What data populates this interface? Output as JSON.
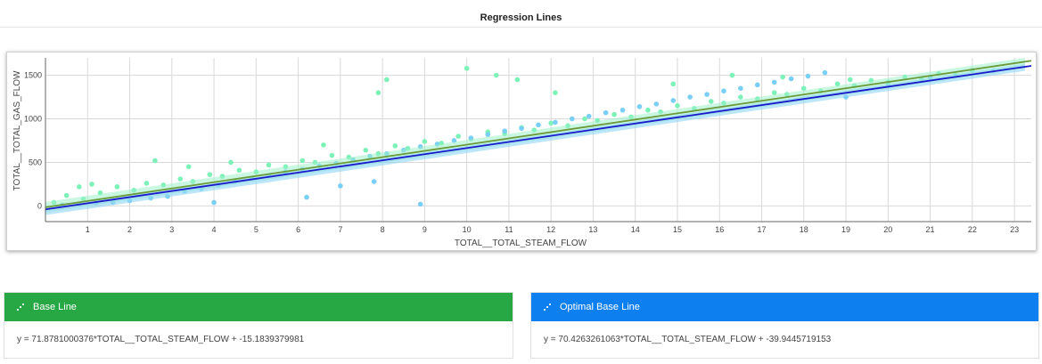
{
  "page": {
    "title": "Regression Lines"
  },
  "chart_data": {
    "type": "scatter",
    "title": "",
    "xlabel": "TOTAL__TOTAL_STEAM_FLOW",
    "ylabel": "TOTAL__TOTAL_GAS_FLOW",
    "xlim": [
      0,
      23.4
    ],
    "ylim": [
      -180,
      1700
    ],
    "x_ticks": [
      1,
      2,
      3,
      4,
      5,
      6,
      7,
      8,
      9,
      10,
      11,
      12,
      13,
      14,
      15,
      16,
      17,
      18,
      19,
      20,
      21,
      22,
      23
    ],
    "y_ticks": [
      0,
      500,
      1000,
      1500
    ],
    "grid": true,
    "series": [
      {
        "kind": "scatter",
        "color": "#7df2b8",
        "points": [
          [
            0.2,
            40
          ],
          [
            0.5,
            120
          ],
          [
            0.9,
            80
          ],
          [
            1.3,
            150
          ],
          [
            1.7,
            220
          ],
          [
            2.1,
            180
          ],
          [
            2.4,
            260
          ],
          [
            2.8,
            240
          ],
          [
            3.2,
            310
          ],
          [
            3.5,
            280
          ],
          [
            3.9,
            360
          ],
          [
            4.2,
            340
          ],
          [
            4.6,
            410
          ],
          [
            5.0,
            390
          ],
          [
            5.3,
            470
          ],
          [
            5.7,
            450
          ],
          [
            6.1,
            520
          ],
          [
            6.4,
            500
          ],
          [
            6.8,
            580
          ],
          [
            7.2,
            560
          ],
          [
            7.6,
            640
          ],
          [
            7.9,
            600
          ],
          [
            8.3,
            690
          ],
          [
            8.6,
            660
          ],
          [
            9.0,
            740
          ],
          [
            9.4,
            720
          ],
          [
            9.8,
            800
          ],
          [
            10.1,
            770
          ],
          [
            10.5,
            850
          ],
          [
            10.9,
            830
          ],
          [
            11.3,
            900
          ],
          [
            11.6,
            870
          ],
          [
            12.0,
            950
          ],
          [
            12.4,
            920
          ],
          [
            12.8,
            1000
          ],
          [
            13.1,
            980
          ],
          [
            13.5,
            1050
          ],
          [
            13.9,
            1020
          ],
          [
            14.3,
            1100
          ],
          [
            14.6,
            1080
          ],
          [
            15.0,
            1150
          ],
          [
            15.4,
            1120
          ],
          [
            15.8,
            1200
          ],
          [
            16.1,
            1180
          ],
          [
            16.5,
            1250
          ],
          [
            16.9,
            1230
          ],
          [
            17.3,
            1300
          ],
          [
            17.6,
            1280
          ],
          [
            18.0,
            1350
          ],
          [
            18.4,
            1320
          ],
          [
            18.8,
            1400
          ],
          [
            19.2,
            1380
          ],
          [
            19.6,
            1440
          ],
          [
            20.0,
            1420
          ],
          [
            20.4,
            1480
          ],
          [
            20.8,
            1460
          ],
          [
            21.2,
            1520
          ],
          [
            21.6,
            1500
          ],
          [
            22.0,
            1560
          ],
          [
            2.6,
            520
          ],
          [
            3.4,
            450
          ],
          [
            4.4,
            500
          ],
          [
            6.6,
            700
          ],
          [
            7.9,
            1300
          ],
          [
            8.1,
            1450
          ],
          [
            10.0,
            1580
          ],
          [
            10.7,
            1500
          ],
          [
            11.2,
            1450
          ],
          [
            12.1,
            1300
          ],
          [
            14.9,
            1400
          ],
          [
            16.3,
            1500
          ],
          [
            17.5,
            1480
          ],
          [
            19.1,
            1450
          ],
          [
            0.8,
            220
          ],
          [
            1.1,
            250
          ]
        ]
      },
      {
        "kind": "scatter",
        "color": "#79cff5",
        "points": [
          [
            0.4,
            10
          ],
          [
            0.8,
            20
          ],
          [
            1.2,
            35
          ],
          [
            1.6,
            40
          ],
          [
            2.0,
            60
          ],
          [
            2.5,
            90
          ],
          [
            2.9,
            110
          ],
          [
            3.3,
            170
          ],
          [
            3.7,
            200
          ],
          [
            4.1,
            240
          ],
          [
            4.5,
            280
          ],
          [
            4.9,
            320
          ],
          [
            5.3,
            350
          ],
          [
            5.7,
            390
          ],
          [
            6.1,
            420
          ],
          [
            6.5,
            460
          ],
          [
            6.9,
            490
          ],
          [
            7.3,
            530
          ],
          [
            7.7,
            570
          ],
          [
            8.1,
            600
          ],
          [
            8.5,
            640
          ],
          [
            8.9,
            680
          ],
          [
            9.3,
            710
          ],
          [
            9.7,
            750
          ],
          [
            10.1,
            780
          ],
          [
            10.5,
            820
          ],
          [
            10.9,
            860
          ],
          [
            11.3,
            890
          ],
          [
            11.7,
            930
          ],
          [
            12.1,
            960
          ],
          [
            12.5,
            1000
          ],
          [
            12.9,
            1030
          ],
          [
            13.3,
            1070
          ],
          [
            13.7,
            1100
          ],
          [
            14.1,
            1140
          ],
          [
            14.5,
            1170
          ],
          [
            14.9,
            1210
          ],
          [
            15.3,
            1250
          ],
          [
            15.7,
            1280
          ],
          [
            16.1,
            1320
          ],
          [
            16.5,
            1350
          ],
          [
            16.9,
            1390
          ],
          [
            17.3,
            1420
          ],
          [
            17.7,
            1460
          ],
          [
            18.1,
            1490
          ],
          [
            18.5,
            1530
          ],
          [
            19.0,
            1250
          ],
          [
            20.0,
            1380
          ],
          [
            21.0,
            1480
          ],
          [
            22.5,
            1550
          ],
          [
            8.9,
            20
          ],
          [
            7.0,
            230
          ],
          [
            6.2,
            100
          ],
          [
            7.8,
            280
          ],
          [
            4.0,
            40
          ]
        ]
      },
      {
        "kind": "line",
        "name": "",
        "color": "#6a9a3a",
        "x": [
          0,
          23.4
        ],
        "slope": 71.8781000376,
        "intercept": -15.1839379981
      },
      {
        "kind": "line",
        "name": "",
        "color": "#1a1ac8",
        "x": [
          0,
          23.4
        ],
        "slope": 70.4263261063,
        "intercept": -39.9445719153
      }
    ]
  },
  "base_line": {
    "title": "Base Line",
    "equation": "y = 71.8781000376*TOTAL__TOTAL_STEAM_FLOW + -15.1839379981",
    "color": "#28a745",
    "icon": "scatter-icon"
  },
  "optimal_base_line": {
    "title": "Optimal Base Line",
    "equation": "y = 70.4263261063*TOTAL__TOTAL_STEAM_FLOW + -39.9445719153",
    "color": "#0d7fee",
    "icon": "scatter-icon"
  }
}
